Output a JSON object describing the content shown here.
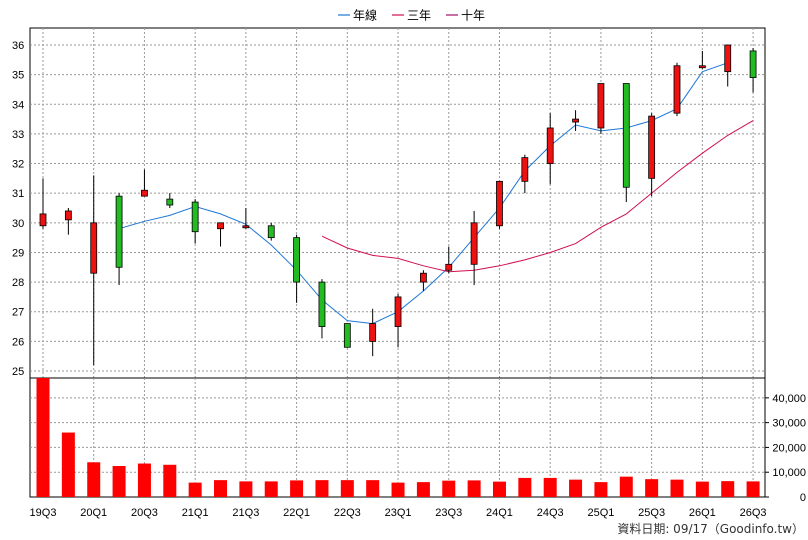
{
  "legend": {
    "items": [
      {
        "label": "年線",
        "color": "#1e78d8"
      },
      {
        "label": "三年",
        "color": "#d0104c"
      },
      {
        "label": "十年",
        "color": "#a0106a"
      }
    ]
  },
  "footer": {
    "source": "資料日期: 09/17（Goodinfo.tw）"
  },
  "chart_data": {
    "type": "candlestick+volume",
    "quarters": [
      "19Q3",
      "19Q4",
      "20Q1",
      "20Q2",
      "20Q3",
      "20Q4",
      "21Q1",
      "21Q2",
      "21Q3",
      "21Q4",
      "22Q1",
      "22Q2",
      "22Q3",
      "22Q4",
      "23Q1",
      "23Q2",
      "23Q3",
      "23Q4",
      "24Q1",
      "24Q2",
      "24Q3",
      "24Q4",
      "25Q1",
      "25Q2",
      "25Q3",
      "25Q4",
      "26Q1",
      "26Q2",
      "26Q3"
    ],
    "x_tick_labels": [
      "19Q3",
      "20Q1",
      "20Q3",
      "21Q1",
      "21Q3",
      "22Q1",
      "22Q3",
      "23Q1",
      "23Q3",
      "24Q1",
      "24Q3",
      "25Q1",
      "25Q3",
      "26Q1",
      "26Q3"
    ],
    "price_axis": {
      "min": 25,
      "max": 36,
      "ticks": [
        "25",
        "26",
        "27",
        "28",
        "29",
        "30",
        "31",
        "32",
        "33",
        "34",
        "35",
        "36"
      ]
    },
    "volume_axis": {
      "min": 0,
      "max": 48000,
      "ticks": [
        "0",
        "10,000",
        "20,000",
        "30,000",
        "40,000"
      ],
      "tick_values": [
        0,
        10000,
        20000,
        30000,
        40000
      ]
    },
    "ohlc": [
      {
        "o": 29.9,
        "h": 31.5,
        "l": 29.8,
        "c": 30.3
      },
      {
        "o": 30.1,
        "h": 30.5,
        "l": 29.6,
        "c": 30.4
      },
      {
        "o": 28.3,
        "h": 31.6,
        "l": 25.2,
        "c": 30.0
      },
      {
        "o": 30.9,
        "h": 31.0,
        "l": 27.9,
        "c": 28.5
      },
      {
        "o": 30.9,
        "h": 31.8,
        "l": 30.9,
        "c": 31.1
      },
      {
        "o": 30.8,
        "h": 31.0,
        "l": 30.5,
        "c": 30.6
      },
      {
        "o": 30.7,
        "h": 30.8,
        "l": 29.3,
        "c": 29.7
      },
      {
        "o": 29.8,
        "h": 30.0,
        "l": 29.2,
        "c": 30.0
      },
      {
        "o": 29.9,
        "h": 30.5,
        "l": 29.8,
        "c": 29.9
      },
      {
        "o": 29.9,
        "h": 30.0,
        "l": 29.4,
        "c": 29.5
      },
      {
        "o": 29.5,
        "h": 29.6,
        "l": 27.3,
        "c": 28.0
      },
      {
        "o": 28.0,
        "h": 28.1,
        "l": 26.1,
        "c": 26.5
      },
      {
        "o": 26.6,
        "h": 26.6,
        "l": 25.8,
        "c": 25.8
      },
      {
        "o": 26.0,
        "h": 27.1,
        "l": 25.5,
        "c": 26.6
      },
      {
        "o": 26.5,
        "h": 27.6,
        "l": 25.8,
        "c": 27.5
      },
      {
        "o": 28.0,
        "h": 28.4,
        "l": 27.7,
        "c": 28.3
      },
      {
        "o": 28.4,
        "h": 29.2,
        "l": 28.3,
        "c": 28.6
      },
      {
        "o": 28.6,
        "h": 30.4,
        "l": 27.9,
        "c": 30.0
      },
      {
        "o": 29.9,
        "h": 31.4,
        "l": 29.8,
        "c": 31.4
      },
      {
        "o": 31.4,
        "h": 32.3,
        "l": 31.0,
        "c": 32.2
      },
      {
        "o": 32.0,
        "h": 33.7,
        "l": 31.3,
        "c": 33.2
      },
      {
        "o": 33.4,
        "h": 33.8,
        "l": 33.1,
        "c": 33.5
      },
      {
        "o": 33.2,
        "h": 34.7,
        "l": 33.0,
        "c": 34.7
      },
      {
        "o": 34.7,
        "h": 34.7,
        "l": 30.7,
        "c": 31.2
      },
      {
        "o": 31.5,
        "h": 33.7,
        "l": 30.9,
        "c": 33.6
      },
      {
        "o": 33.7,
        "h": 35.4,
        "l": 33.6,
        "c": 35.3
      },
      {
        "o": 35.3,
        "h": 35.8,
        "l": 35.2,
        "c": 35.3
      },
      {
        "o": 35.1,
        "h": 36.0,
        "l": 34.6,
        "c": 36.0
      },
      {
        "o": 35.8,
        "h": 35.9,
        "l": 34.4,
        "c": 34.9
      }
    ],
    "volume": [
      48000,
      26000,
      14000,
      12500,
      13500,
      13000,
      5800,
      6800,
      6300,
      6300,
      6700,
      6800,
      6800,
      6800,
      5800,
      6000,
      6600,
      6700,
      6200,
      7700,
      7700,
      7000,
      6000,
      8200,
      7200,
      7000,
      6200,
      6400,
      6300
    ],
    "series": [
      {
        "name": "年線",
        "color": "#1e78d8",
        "start_index": 3,
        "values": [
          29.8,
          30.05,
          30.25,
          30.55,
          30.3,
          29.95,
          29.25,
          28.4,
          27.4,
          26.7,
          26.6,
          27.0,
          27.7,
          28.5,
          29.5,
          30.5,
          31.75,
          32.6,
          33.3,
          33.1,
          33.2,
          33.45,
          33.85,
          35.1,
          35.4
        ]
      },
      {
        "name": "三年",
        "color": "#d0104c",
        "start_index": 11,
        "values": [
          29.55,
          29.15,
          28.9,
          28.8,
          28.55,
          28.35,
          28.4,
          28.55,
          28.75,
          29.0,
          29.3,
          29.85,
          30.3,
          31.0,
          31.7,
          32.35,
          32.95,
          33.45
        ]
      }
    ]
  }
}
